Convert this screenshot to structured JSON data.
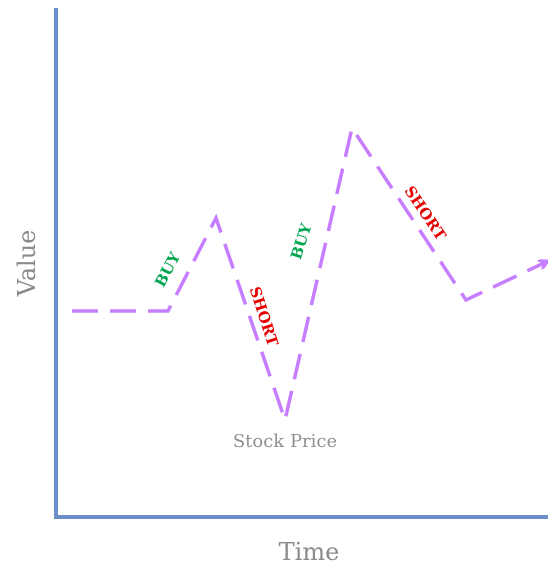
{
  "chart_data": {
    "type": "line",
    "xlabel": "Time",
    "ylabel": "Value",
    "series": [
      {
        "name": "Stock Price",
        "values": []
      }
    ],
    "annotations": [
      {
        "text": "BUY",
        "color": "#00a650"
      },
      {
        "text": "SHORT",
        "color": "#e60000"
      },
      {
        "text": "BUY",
        "color": "#00a650"
      },
      {
        "text": "SHORT",
        "color": "#e60000"
      }
    ],
    "grid": false,
    "line_style": "dashed",
    "line_color": "#c77dff",
    "axis_color": "#6b8fc7"
  }
}
